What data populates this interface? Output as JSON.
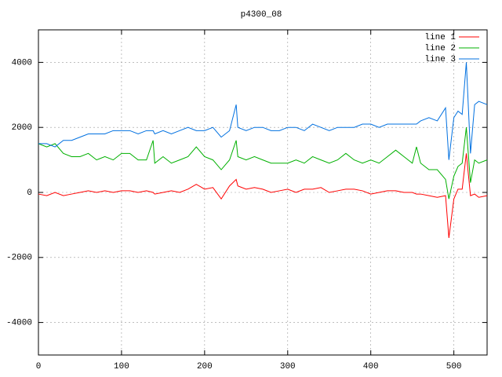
{
  "chart_data": {
    "type": "line",
    "title": "p4300_08",
    "x": [
      0,
      10,
      20,
      30,
      40,
      50,
      60,
      70,
      80,
      90,
      100,
      110,
      120,
      130,
      138,
      140,
      150,
      160,
      170,
      180,
      190,
      200,
      210,
      220,
      230,
      238,
      240,
      250,
      260,
      270,
      280,
      290,
      300,
      310,
      320,
      330,
      340,
      350,
      360,
      370,
      380,
      390,
      400,
      410,
      420,
      430,
      440,
      450,
      455,
      460,
      470,
      480,
      490,
      494,
      500,
      505,
      510,
      515,
      520,
      525,
      530,
      540
    ],
    "series": [
      {
        "name": "line 1",
        "color": "#ff0000",
        "values": [
          -50,
          -100,
          0,
          -100,
          -50,
          0,
          50,
          0,
          50,
          0,
          50,
          50,
          0,
          50,
          0,
          -50,
          0,
          50,
          0,
          100,
          250,
          100,
          150,
          -200,
          200,
          400,
          200,
          100,
          150,
          100,
          0,
          50,
          100,
          0,
          100,
          100,
          150,
          0,
          50,
          100,
          100,
          50,
          -50,
          0,
          50,
          50,
          0,
          0,
          -50,
          -50,
          -100,
          -150,
          -100,
          -1400,
          -200,
          100,
          100,
          1200,
          -100,
          -50,
          -150,
          -100
        ]
      },
      {
        "name": "line 2",
        "color": "#00b000",
        "values": [
          1500,
          1400,
          1500,
          1200,
          1100,
          1100,
          1200,
          1000,
          1100,
          1000,
          1200,
          1200,
          1000,
          1000,
          1600,
          900,
          1100,
          900,
          1000,
          1100,
          1400,
          1100,
          1000,
          700,
          1000,
          1600,
          1100,
          1000,
          1100,
          1000,
          900,
          900,
          900,
          1000,
          900,
          1100,
          1000,
          900,
          1000,
          1200,
          1000,
          900,
          1000,
          900,
          1100,
          1300,
          1100,
          900,
          1400,
          900,
          700,
          700,
          400,
          -200,
          500,
          800,
          900,
          2000,
          300,
          1000,
          900,
          1000
        ]
      },
      {
        "name": "line 3",
        "color": "#0070e0",
        "values": [
          1500,
          1500,
          1400,
          1600,
          1600,
          1700,
          1800,
          1800,
          1800,
          1900,
          1900,
          1900,
          1800,
          1900,
          1900,
          1800,
          1900,
          1800,
          1900,
          2000,
          1900,
          1900,
          2000,
          1700,
          1900,
          2700,
          2000,
          1900,
          2000,
          2000,
          1900,
          1900,
          2000,
          2000,
          1900,
          2100,
          2000,
          1900,
          2000,
          2000,
          2000,
          2100,
          2100,
          2000,
          2100,
          2100,
          2100,
          2100,
          2100,
          2200,
          2300,
          2200,
          2600,
          1000,
          2300,
          2500,
          2400,
          4000,
          1200,
          2700,
          2800,
          2700
        ]
      }
    ],
    "xlim": [
      0,
      540
    ],
    "ylim": [
      -5000,
      5000
    ],
    "xticks": [
      0,
      100,
      200,
      300,
      400,
      500
    ],
    "yticks": [
      -4000,
      -2000,
      0,
      2000,
      4000
    ],
    "grid": true,
    "legend": "top-right"
  }
}
